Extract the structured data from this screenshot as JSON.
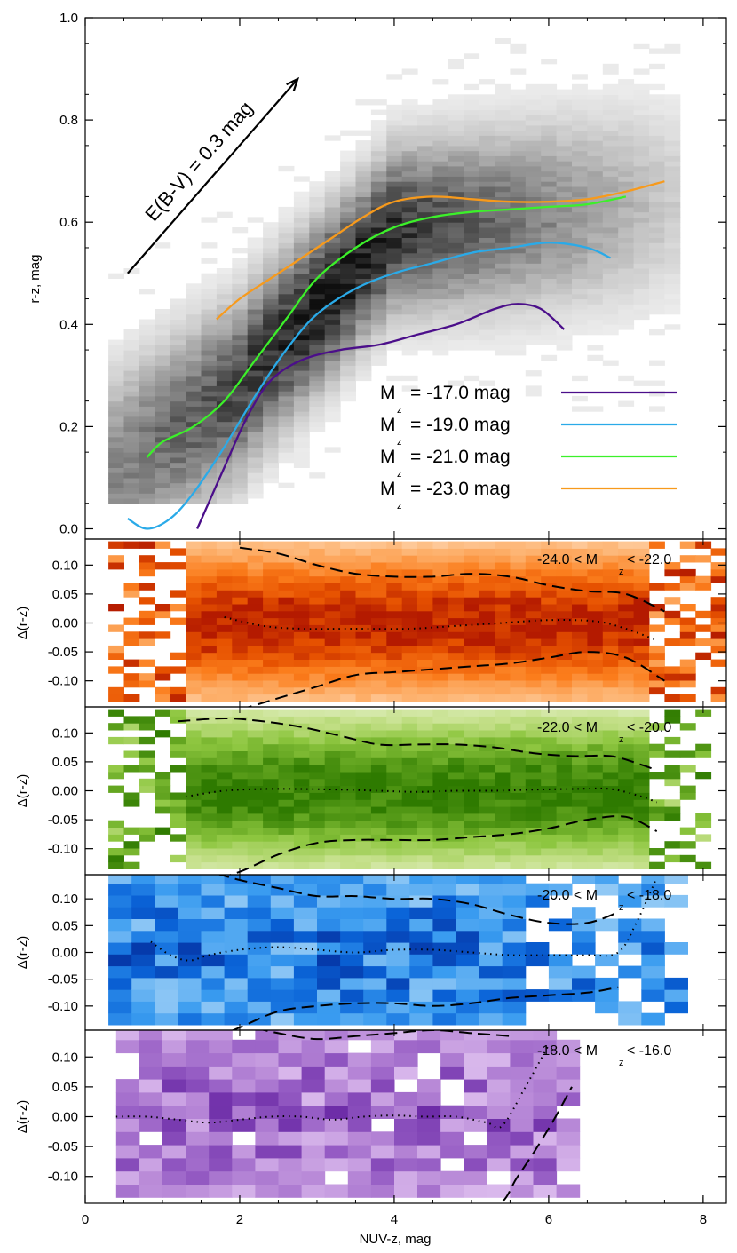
{
  "chart_data": [
    {
      "type": "heatmap",
      "xlabel": "",
      "ylabel": "r-z, mag",
      "xlim": [
        0,
        8.3
      ],
      "ylim": [
        -0.02,
        1.0
      ],
      "x_ticks": [
        "0",
        "2",
        "4",
        "6",
        "8"
      ],
      "y_ticks": [
        "0.0",
        "0.2",
        "0.4",
        "0.6",
        "0.8",
        "1.0"
      ],
      "reddening_vector": {
        "label": "E(B-V) = 0.3 mag",
        "from": [
          0.55,
          0.5
        ],
        "to": [
          2.75,
          0.88
        ]
      },
      "legend_position": "lower-right",
      "legend_subscript": "z",
      "series": [
        {
          "name": "M",
          "label_suffix": "= -17.0 mag",
          "color": "#4b0e8a",
          "x": [
            1.45,
            1.8,
            2.1,
            2.4,
            2.8,
            3.3,
            3.8,
            4.3,
            4.8,
            5.3,
            5.6,
            5.9,
            6.2
          ],
          "y": [
            0.0,
            0.12,
            0.22,
            0.29,
            0.33,
            0.35,
            0.36,
            0.38,
            0.4,
            0.43,
            0.44,
            0.43,
            0.39
          ]
        },
        {
          "name": "M",
          "label_suffix": "= -19.0 mag",
          "color": "#2aaae8",
          "x": [
            0.55,
            0.8,
            1.1,
            1.4,
            1.8,
            2.2,
            2.6,
            3.0,
            3.5,
            4.0,
            4.5,
            5.0,
            5.5,
            6.0,
            6.5,
            6.8
          ],
          "y": [
            0.02,
            0.0,
            0.02,
            0.07,
            0.16,
            0.26,
            0.35,
            0.42,
            0.47,
            0.5,
            0.52,
            0.54,
            0.55,
            0.56,
            0.55,
            0.53
          ]
        },
        {
          "name": "M",
          "label_suffix": "= -21.0 mag",
          "color": "#3cf02a",
          "x": [
            0.8,
            1.0,
            1.4,
            1.8,
            2.2,
            2.6,
            3.0,
            3.5,
            4.0,
            4.5,
            5.0,
            5.5,
            6.0,
            6.5,
            7.0
          ],
          "y": [
            0.14,
            0.17,
            0.2,
            0.25,
            0.33,
            0.41,
            0.49,
            0.55,
            0.59,
            0.61,
            0.62,
            0.625,
            0.63,
            0.635,
            0.65
          ]
        },
        {
          "name": "M",
          "label_suffix": "= -23.0 mag",
          "color": "#f79a1c",
          "x": [
            1.7,
            2.0,
            2.4,
            2.8,
            3.2,
            3.6,
            4.0,
            4.5,
            5.0,
            5.5,
            6.0,
            6.5,
            7.0,
            7.5
          ],
          "y": [
            0.41,
            0.45,
            0.49,
            0.53,
            0.57,
            0.61,
            0.64,
            0.65,
            0.645,
            0.64,
            0.64,
            0.645,
            0.66,
            0.68
          ]
        }
      ]
    },
    {
      "type": "heatmap",
      "label": "-24.0 < M",
      "label_sub": "z",
      "label_tail": " < -22.0",
      "ylabel": "Δ(r-z)",
      "colormap": [
        "#fff3e6",
        "#fdb06b",
        "#fb7d1c",
        "#e65100",
        "#b41a00"
      ],
      "median_x": [
        1.8,
        2.3,
        2.8,
        3.5,
        4.2,
        4.8,
        5.4,
        6.0,
        6.6,
        7.0,
        7.4
      ],
      "median_y": [
        0.01,
        -0.005,
        -0.01,
        -0.01,
        -0.01,
        -0.005,
        0.0,
        0.005,
        0.003,
        -0.01,
        -0.03
      ],
      "upper_x": [
        2.0,
        2.5,
        3.0,
        3.5,
        4.0,
        4.5,
        5.0,
        5.5,
        6.0,
        6.5,
        7.0,
        7.5
      ],
      "upper_y": [
        0.13,
        0.12,
        0.1,
        0.085,
        0.08,
        0.08,
        0.085,
        0.08,
        0.065,
        0.055,
        0.05,
        0.02
      ],
      "lower_x": [
        2.0,
        2.5,
        3.0,
        3.5,
        4.0,
        4.5,
        5.0,
        5.5,
        6.0,
        6.5,
        7.0,
        7.5
      ],
      "lower_y": [
        -0.15,
        -0.13,
        -0.11,
        -0.09,
        -0.085,
        -0.08,
        -0.075,
        -0.07,
        -0.06,
        -0.05,
        -0.06,
        -0.1
      ]
    },
    {
      "type": "heatmap",
      "label": "-22.0 < M",
      "label_sub": "z",
      "label_tail": " < -20.0",
      "ylabel": "Δ(r-z)",
      "colormap": [
        "#f2f8e6",
        "#c5e08a",
        "#8dc63f",
        "#5a9e1a",
        "#2e7a00"
      ],
      "median_x": [
        1.3,
        1.8,
        2.3,
        2.8,
        3.3,
        3.8,
        4.3,
        4.8,
        5.3,
        5.8,
        6.3,
        6.8,
        7.2,
        7.4
      ],
      "median_y": [
        -0.01,
        0.0,
        0.003,
        0.003,
        0.002,
        0.0,
        -0.002,
        0.0,
        0.0,
        0.002,
        0.003,
        0.003,
        -0.01,
        -0.02
      ],
      "upper_x": [
        1.2,
        1.8,
        2.3,
        2.8,
        3.3,
        3.8,
        4.3,
        4.8,
        5.3,
        5.8,
        6.3,
        6.8,
        7.2,
        7.4
      ],
      "upper_y": [
        0.12,
        0.125,
        0.12,
        0.11,
        0.095,
        0.08,
        0.08,
        0.08,
        0.075,
        0.065,
        0.06,
        0.06,
        0.045,
        0.035
      ],
      "lower_x": [
        1.5,
        2.0,
        2.5,
        3.0,
        3.5,
        4.0,
        4.5,
        5.0,
        5.5,
        6.0,
        6.5,
        7.0,
        7.4
      ],
      "lower_y": [
        -0.16,
        -0.14,
        -0.11,
        -0.09,
        -0.085,
        -0.085,
        -0.085,
        -0.08,
        -0.075,
        -0.065,
        -0.05,
        -0.045,
        -0.07
      ]
    },
    {
      "type": "heatmap",
      "label": "-20.0 < M",
      "label_sub": "z",
      "label_tail": " < -18.0",
      "ylabel": "Δ(r-z)",
      "colormap": [
        "#ddeefb",
        "#90c8f5",
        "#3a9cf0",
        "#0a64d8",
        "#0537a8"
      ],
      "median_x": [
        0.85,
        1.1,
        1.35,
        1.6,
        2.0,
        2.5,
        3.0,
        3.5,
        4.0,
        4.5,
        5.0,
        5.5,
        6.0,
        6.5,
        6.9,
        7.15,
        7.4
      ],
      "median_y": [
        0.02,
        -0.005,
        -0.015,
        -0.005,
        0.005,
        0.01,
        0.005,
        0.0,
        0.005,
        0.005,
        0.0,
        -0.005,
        -0.005,
        -0.005,
        0.0,
        0.06,
        0.14
      ],
      "upper_x": [
        1.0,
        1.5,
        2.0,
        2.5,
        3.0,
        3.5,
        4.0,
        4.5,
        5.0,
        5.5,
        6.0,
        6.5,
        6.9
      ],
      "upper_y": [
        0.17,
        0.155,
        0.135,
        0.12,
        0.105,
        0.105,
        0.1,
        0.1,
        0.09,
        0.07,
        0.055,
        0.055,
        0.075
      ],
      "lower_x": [
        1.0,
        1.5,
        2.0,
        2.5,
        3.0,
        3.5,
        4.0,
        4.5,
        5.0,
        5.5,
        6.0,
        6.5,
        6.9
      ],
      "lower_y": [
        -0.2,
        -0.17,
        -0.14,
        -0.11,
        -0.1,
        -0.095,
        -0.095,
        -0.1,
        -0.095,
        -0.085,
        -0.08,
        -0.075,
        -0.065
      ]
    },
    {
      "type": "heatmap",
      "label": "-18.0 < M",
      "label_sub": "z",
      "label_tail": " < -16.0",
      "ylabel": "Δ(r-z)",
      "colormap": [
        "#f1e6f7",
        "#d9b8ec",
        "#b98ad8",
        "#955cc4",
        "#6b2aa6"
      ],
      "median_x": [
        0.4,
        0.8,
        1.2,
        1.6,
        2.0,
        2.4,
        2.8,
        3.2,
        3.6,
        4.0,
        4.4,
        4.8,
        5.2,
        5.4,
        5.7,
        6.0
      ],
      "median_y": [
        0.0,
        0.0,
        -0.005,
        -0.01,
        -0.005,
        0.0,
        0.0,
        -0.005,
        0.0,
        0.002,
        0.0,
        0.0,
        -0.01,
        -0.015,
        0.05,
        0.12
      ],
      "upper_x": [
        1.5,
        2.0,
        2.5,
        3.0,
        3.5,
        4.0,
        4.5,
        5.0,
        5.5
      ],
      "upper_y": [
        0.17,
        0.155,
        0.14,
        0.13,
        0.135,
        0.14,
        0.145,
        0.14,
        0.135
      ],
      "lower_x": [
        0.6,
        1.5,
        2.5,
        3.5,
        4.5,
        5.3,
        5.6,
        6.0,
        6.3
      ],
      "lower_y": [
        -0.16,
        -0.16,
        -0.158,
        -0.156,
        -0.154,
        -0.15,
        -0.1,
        -0.02,
        0.05
      ]
    }
  ],
  "bottom_axis": {
    "xlabel": "NUV-z, mag",
    "x_ticks": [
      "0",
      "2",
      "4",
      "6",
      "8"
    ]
  },
  "residual_y_ticks": [
    "0.10",
    "0.05",
    "0.00",
    "-0.05",
    "-0.10"
  ]
}
